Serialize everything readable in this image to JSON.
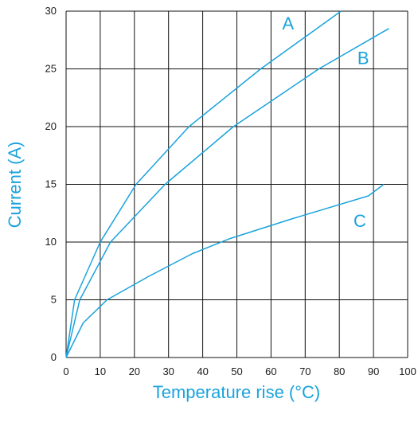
{
  "chart_data": {
    "type": "line",
    "xlabel": "Temperature rise (°C)",
    "ylabel": "Current (A)",
    "xlim": [
      0,
      100
    ],
    "ylim": [
      0,
      30
    ],
    "xticks": [
      0,
      10,
      20,
      30,
      40,
      50,
      60,
      70,
      80,
      90,
      100
    ],
    "yticks": [
      0,
      5,
      10,
      15,
      20,
      25,
      30
    ],
    "grid": true,
    "line_color": "#1aa3dc",
    "series": [
      {
        "name": "A",
        "points": [
          [
            0,
            0
          ],
          [
            2.5,
            5
          ],
          [
            10,
            10
          ],
          [
            20.5,
            15
          ],
          [
            36,
            20
          ],
          [
            57,
            25
          ],
          [
            80.5,
            30
          ]
        ],
        "label_at": [
          65,
          28.4
        ]
      },
      {
        "name": "B",
        "points": [
          [
            0,
            0
          ],
          [
            4,
            5
          ],
          [
            13,
            10
          ],
          [
            29,
            15
          ],
          [
            49,
            20
          ],
          [
            74,
            25
          ],
          [
            94.5,
            28.5
          ]
        ],
        "label_at": [
          87,
          25.4
        ]
      },
      {
        "name": "C",
        "points": [
          [
            0,
            0
          ],
          [
            5,
            3
          ],
          [
            12,
            5
          ],
          [
            24,
            7
          ],
          [
            37,
            9
          ],
          [
            48,
            10.3
          ],
          [
            66,
            12
          ],
          [
            88.5,
            14
          ],
          [
            93,
            15
          ]
        ],
        "label_at": [
          86,
          11.3
        ]
      }
    ]
  }
}
